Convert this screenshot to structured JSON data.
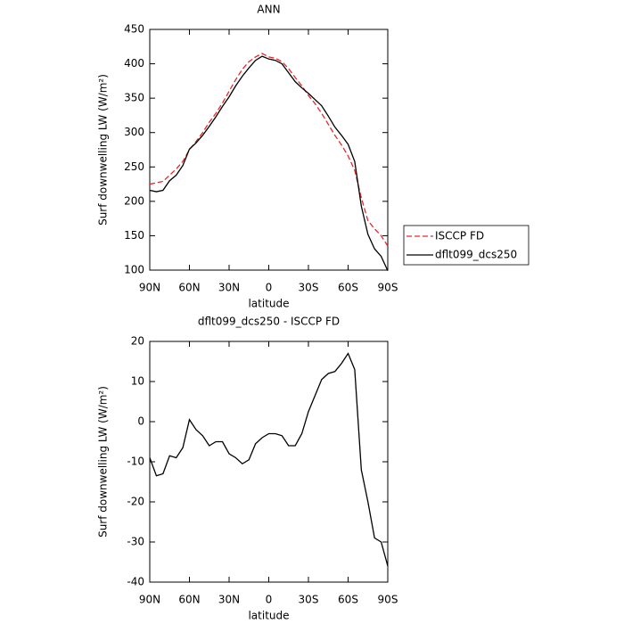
{
  "chart_data": [
    {
      "type": "line",
      "title": "ANN",
      "xlabel": "latitude",
      "ylabel": "Surf downwelling LW (W/m²)",
      "x": [
        90,
        85,
        80,
        75,
        70,
        65,
        60,
        55,
        50,
        45,
        40,
        35,
        30,
        25,
        20,
        15,
        10,
        5,
        0,
        -5,
        -10,
        -15,
        -20,
        -25,
        -30,
        -35,
        -40,
        -45,
        -50,
        -55,
        -60,
        -65,
        -70,
        -75,
        -80,
        -85,
        -90
      ],
      "series": [
        {
          "name": "ISCCP FD",
          "color": "#e8262a",
          "linestyle": "dashed",
          "values": [
            225,
            227,
            229,
            238,
            247,
            258,
            275,
            287,
            300,
            315,
            328,
            343,
            360,
            377,
            392,
            403,
            410,
            415,
            410,
            408,
            403,
            393,
            380,
            368,
            354,
            342,
            328,
            312,
            296,
            282,
            266,
            245,
            205,
            172,
            160,
            150,
            135
          ]
        },
        {
          "name": "dflt099_dcs250",
          "color": "#000000",
          "linestyle": "solid",
          "values": [
            216,
            214,
            216,
            230,
            238,
            252,
            276,
            285,
            296,
            309,
            323,
            338,
            352,
            368,
            382,
            394,
            405,
            411,
            407,
            405,
            400,
            387,
            374,
            365,
            357,
            348,
            339,
            324,
            308,
            296,
            283,
            258,
            193,
            152,
            131,
            120,
            99
          ]
        }
      ],
      "xlim": [
        90,
        -90
      ],
      "xticks": [
        {
          "value": 90,
          "label": "90N"
        },
        {
          "value": 60,
          "label": "60N"
        },
        {
          "value": 30,
          "label": "30N"
        },
        0,
        {
          "value": -30,
          "label": "30S"
        },
        {
          "value": -60,
          "label": "60S"
        },
        {
          "value": -90,
          "label": "90S"
        }
      ],
      "ylim": [
        100,
        450
      ],
      "yticks": [
        100,
        150,
        200,
        250,
        300,
        350,
        400,
        450
      ],
      "legend": "right"
    },
    {
      "type": "line",
      "title": "dflt099_dcs250 - ISCCP FD",
      "xlabel": "latitude",
      "ylabel": "Surf downwelling LW (W/m²)",
      "x": [
        90,
        85,
        80,
        75,
        70,
        65,
        60,
        55,
        50,
        45,
        40,
        35,
        30,
        25,
        20,
        15,
        10,
        5,
        0,
        -5,
        -10,
        -15,
        -20,
        -25,
        -30,
        -35,
        -40,
        -45,
        -50,
        -55,
        -60,
        -65,
        -70,
        -75,
        -80,
        -85,
        -90
      ],
      "series": [
        {
          "color": "#000000",
          "linestyle": "solid",
          "values": [
            -9,
            -13.5,
            -13,
            -8.5,
            -9,
            -6.5,
            0.5,
            -2,
            -3.5,
            -6,
            -5,
            -5,
            -8,
            -9,
            -10.5,
            -9.5,
            -5.5,
            -4,
            -3,
            -3,
            -3.5,
            -6,
            -6,
            -3,
            2.5,
            6.5,
            10.5,
            12,
            12.5,
            14.5,
            17,
            13,
            -12,
            -20,
            -29,
            -30,
            -36
          ]
        }
      ],
      "xlim": [
        90,
        -90
      ],
      "xticks": [
        {
          "value": 90,
          "label": "90N"
        },
        {
          "value": 60,
          "label": "60N"
        },
        {
          "value": 30,
          "label": "30N"
        },
        0,
        {
          "value": -30,
          "label": "30S"
        },
        {
          "value": -60,
          "label": "60S"
        },
        {
          "value": -90,
          "label": "90S"
        }
      ],
      "ylim": [
        -40,
        20
      ],
      "yticks": [
        -40,
        -30,
        -20,
        -10,
        0,
        10,
        20
      ]
    }
  ]
}
